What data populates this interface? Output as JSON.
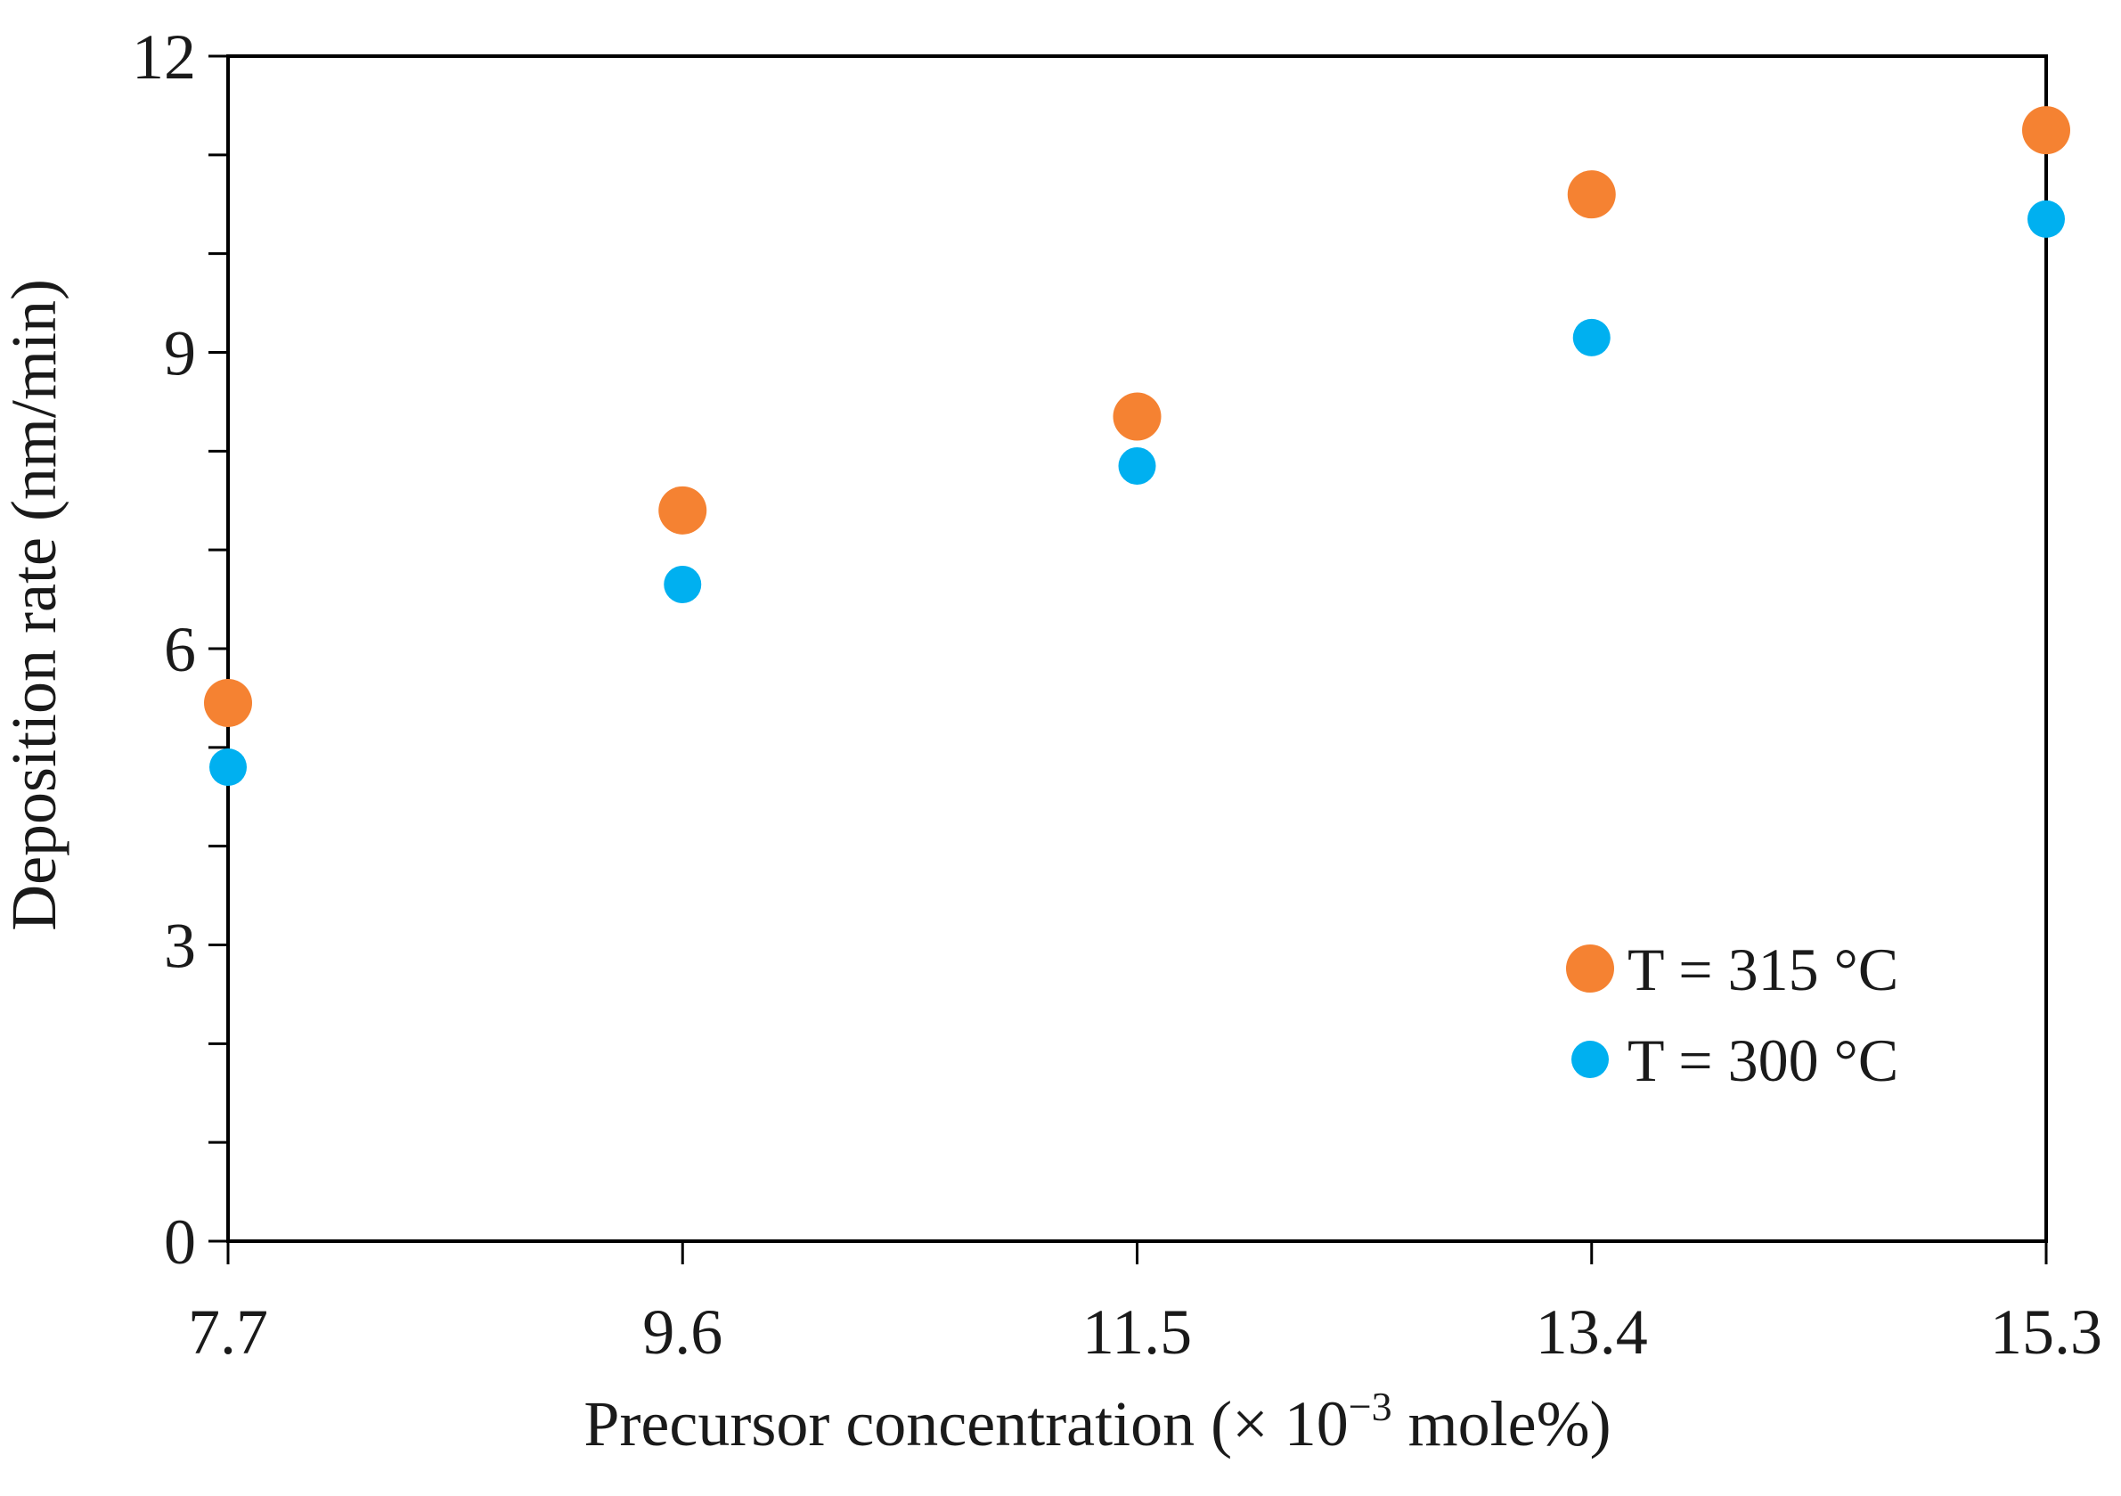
{
  "chart_data": {
    "type": "scatter",
    "title": "",
    "xlabel": "Precursor concentration (× 10⁻³ mole%)",
    "xlabel_parts": {
      "before": "Precursor concentration (× 10",
      "superscript": "−3",
      "after": " mole%)"
    },
    "ylabel": "Deposition rate (nm/min)",
    "x_ticks": [
      "7.7",
      "9.6",
      "11.5",
      "13.4",
      "15.3"
    ],
    "y_ticks": [
      "0",
      "3",
      "6",
      "9",
      "12"
    ],
    "xlim": [
      7.7,
      15.3
    ],
    "ylim": [
      0,
      12
    ],
    "y_minor_step": 1,
    "grid": false,
    "legend_position": "bottom-right",
    "series": [
      {
        "name": "T = 315 °C",
        "color": "#F58232",
        "x": [
          7.7,
          9.6,
          11.5,
          13.4,
          15.3
        ],
        "y": [
          5.45,
          7.4,
          8.35,
          10.6,
          11.25
        ]
      },
      {
        "name": "T = 300 °C",
        "color": "#00B0F0",
        "x": [
          7.7,
          9.6,
          11.5,
          13.4,
          15.3
        ],
        "y": [
          4.8,
          6.65,
          7.85,
          9.15,
          10.35
        ]
      }
    ]
  }
}
